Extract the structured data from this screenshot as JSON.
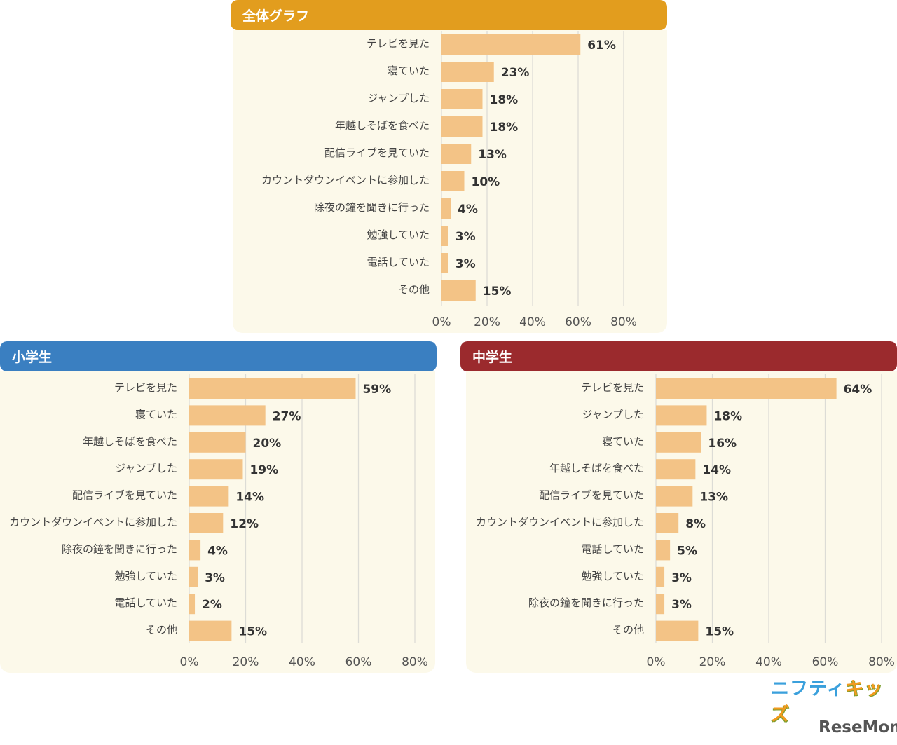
{
  "colors": {
    "bar": "#f3c386",
    "grid": "#dcdcd6",
    "panel_bg": "#fcf9ea",
    "header_overall": "#e29d1e",
    "header_elementary": "#3a7fc1",
    "header_middle": "#9b2a2d"
  },
  "panels": {
    "overall": {
      "title": "全体グラフ"
    },
    "elementary": {
      "title": "小学生"
    },
    "middle": {
      "title": "中学生"
    }
  },
  "logos": {
    "nifty": "ニフティ",
    "kids": "キッズ",
    "resemom": "ReseMom"
  },
  "chart_data": [
    {
      "type": "bar",
      "orientation": "horizontal",
      "title": "全体グラフ",
      "categories": [
        "テレビを見た",
        "寝ていた",
        "ジャンプした",
        "年越しそばを食べた",
        "配信ライブを見ていた",
        "カウントダウンイベントに参加した",
        "除夜の鐘を聞きに行った",
        "勉強していた",
        "電話していた",
        "その他"
      ],
      "values": [
        61,
        23,
        18,
        18,
        13,
        10,
        4,
        3,
        3,
        15
      ],
      "value_labels": [
        "61%",
        "23%",
        "18%",
        "18%",
        "13%",
        "10%",
        "4%",
        "3%",
        "3%",
        "15%"
      ],
      "xlim": [
        0,
        80
      ],
      "x_ticks": [
        0,
        20,
        40,
        60,
        80
      ],
      "x_tick_labels": [
        "0%",
        "20%",
        "40%",
        "60%",
        "80%"
      ],
      "grid": true
    },
    {
      "type": "bar",
      "orientation": "horizontal",
      "title": "小学生",
      "categories": [
        "テレビを見た",
        "寝ていた",
        "年越しそばを食べた",
        "ジャンプした",
        "配信ライブを見ていた",
        "カウントダウンイベントに参加した",
        "除夜の鐘を聞きに行った",
        "勉強していた",
        "電話していた",
        "その他"
      ],
      "values": [
        59,
        27,
        20,
        19,
        14,
        12,
        4,
        3,
        2,
        15
      ],
      "value_labels": [
        "59%",
        "27%",
        "20%",
        "19%",
        "14%",
        "12%",
        "4%",
        "3%",
        "2%",
        "15%"
      ],
      "xlim": [
        0,
        80
      ],
      "x_ticks": [
        0,
        20,
        40,
        60,
        80
      ],
      "x_tick_labels": [
        "0%",
        "20%",
        "40%",
        "60%",
        "80%"
      ],
      "grid": true
    },
    {
      "type": "bar",
      "orientation": "horizontal",
      "title": "中学生",
      "categories": [
        "テレビを見た",
        "ジャンプした",
        "寝ていた",
        "年越しそばを食べた",
        "配信ライブを見ていた",
        "カウントダウンイベントに参加した",
        "電話していた",
        "勉強していた",
        "除夜の鐘を聞きに行った",
        "その他"
      ],
      "values": [
        64,
        18,
        16,
        14,
        13,
        8,
        5,
        3,
        3,
        15
      ],
      "value_labels": [
        "64%",
        "18%",
        "16%",
        "14%",
        "13%",
        "8%",
        "5%",
        "3%",
        "3%",
        "15%"
      ],
      "xlim": [
        0,
        80
      ],
      "x_ticks": [
        0,
        20,
        40,
        60,
        80
      ],
      "x_tick_labels": [
        "0%",
        "20%",
        "40%",
        "60%",
        "80%"
      ],
      "grid": true
    }
  ]
}
